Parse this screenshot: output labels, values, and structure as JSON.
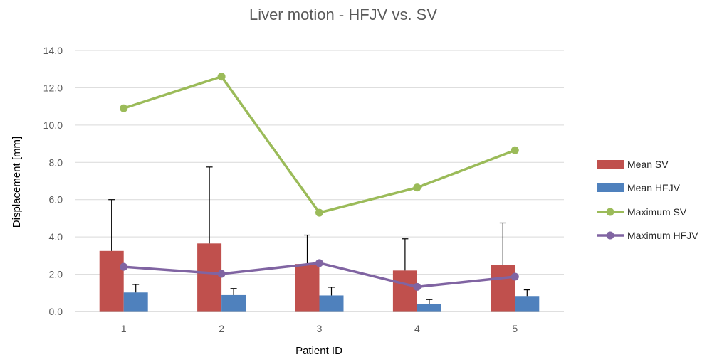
{
  "chart_data": {
    "type": "bar",
    "title": "Liver motion - HFJV vs. SV",
    "xlabel": "Patient ID",
    "ylabel": "Displacement [mm]",
    "categories": [
      "1",
      "2",
      "3",
      "4",
      "5"
    ],
    "ylim": [
      0,
      14
    ],
    "yticks": [
      "0.0",
      "2.0",
      "4.0",
      "6.0",
      "8.0",
      "10.0",
      "12.0",
      "14.0"
    ],
    "grid": true,
    "legend_position": "right",
    "series": [
      {
        "name": "Mean SV",
        "kind": "bar",
        "color": "#c0504d",
        "values": [
          3.25,
          3.65,
          2.55,
          2.2,
          2.5
        ],
        "error_plus": [
          2.75,
          4.1,
          1.55,
          1.7,
          2.25
        ]
      },
      {
        "name": "Mean HFJV",
        "kind": "bar",
        "color": "#4f81bd",
        "values": [
          1.02,
          0.88,
          0.86,
          0.4,
          0.83
        ],
        "error_plus": [
          0.43,
          0.35,
          0.44,
          0.24,
          0.33
        ]
      },
      {
        "name": "Maximum SV",
        "kind": "line",
        "color": "#9bbb59",
        "values": [
          10.9,
          12.6,
          5.3,
          6.65,
          8.65
        ]
      },
      {
        "name": "Maximum HFJV",
        "kind": "line",
        "color": "#8064a2",
        "values": [
          2.4,
          2.02,
          2.6,
          1.32,
          1.87
        ]
      }
    ]
  }
}
